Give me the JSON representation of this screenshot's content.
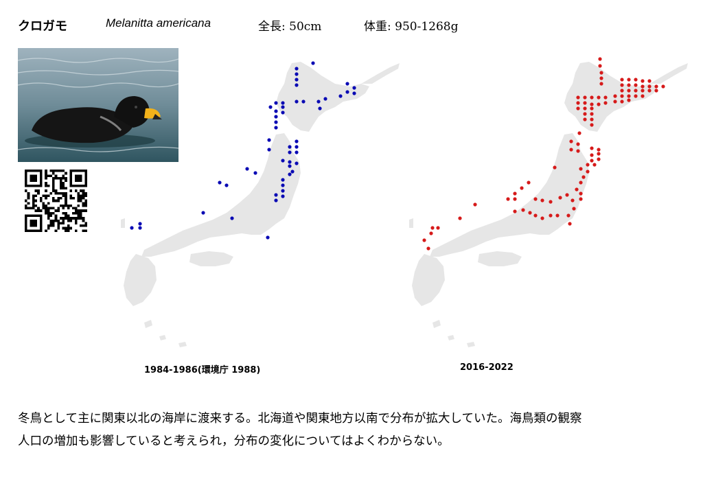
{
  "header": {
    "name_ja": "クロガモ",
    "name_sci": "Melanitta americana",
    "length": "全長: 50cm",
    "weight": "体重: 950-1268g"
  },
  "photo": {
    "subject": "black-scoter-photo"
  },
  "qr": {
    "icon": "qr-code-icon"
  },
  "colors": {
    "land": "#e6e6e6",
    "dots_1984": "#0a0ab4",
    "dots_2016": "#d61a1a"
  },
  "maps": {
    "left": {
      "caption": "1984-1986(環境庁 1988)"
    },
    "right": {
      "caption": "2016-2022"
    }
  },
  "description": {
    "line1": "冬鳥として主に関東以北の海岸に渡来する。北海道や関東地方以南で分布が拡大していた。海鳥類の観察",
    "line2": "人口の増加も影響していると考えられ，分布の変化についてはよくわからない。"
  }
}
